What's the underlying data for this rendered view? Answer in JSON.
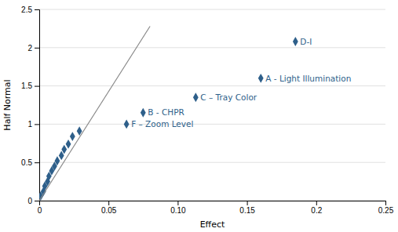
{
  "chart_data": {
    "type": "scatter",
    "title": "",
    "xlabel": "Effect",
    "ylabel": "Half Normal",
    "xlim": [
      0,
      0.25
    ],
    "ylim": [
      0,
      2.5
    ],
    "xticks": [
      0,
      0.05,
      {
        "value": 0.1,
        "label": "0.10"
      },
      0.15,
      0.2,
      0.25
    ],
    "yticks": [
      0,
      0.5,
      1,
      1.5,
      2,
      2.5
    ],
    "grid": true,
    "series": [
      {
        "type": "scatter",
        "marker": "diamond",
        "color": "#2E5F8A",
        "x": [
          0.001,
          0.003,
          0.004,
          0.006,
          0.007,
          0.009,
          0.011,
          0.013,
          0.016,
          0.018,
          0.021,
          0.024,
          0.029,
          0.063,
          0.075,
          0.113,
          0.16,
          0.185
        ],
        "values": [
          0.06,
          0.12,
          0.19,
          0.25,
          0.32,
          0.39,
          0.45,
          0.52,
          0.59,
          0.67,
          0.74,
          0.84,
          0.91,
          1.0,
          1.15,
          1.35,
          1.6,
          2.08
        ]
      },
      {
        "type": "line",
        "color": "#888888",
        "x": [
          0,
          0.08
        ],
        "values": [
          0,
          2.28
        ]
      }
    ],
    "annotations": [
      {
        "text": "F – Zoom Level",
        "x": 0.063,
        "y": 1.0
      },
      {
        "text": "B - CHPR",
        "x": 0.075,
        "y": 1.15
      },
      {
        "text": "C – Tray Color",
        "x": 0.113,
        "y": 1.35
      },
      {
        "text": "A - Light Illumination",
        "x": 0.16,
        "y": 1.6
      },
      {
        "text": "D-I",
        "x": 0.185,
        "y": 2.08
      }
    ]
  }
}
